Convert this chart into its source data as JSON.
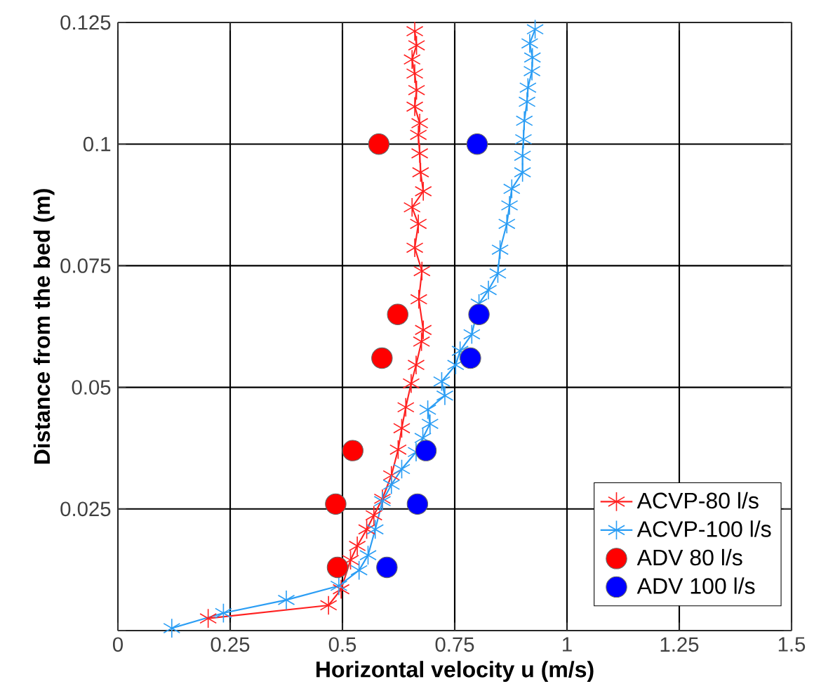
{
  "chart_data": {
    "type": "line",
    "xlabel": "Horizontal velocity u (m/s)",
    "ylabel": "Distance from the bed (m)",
    "xlim": [
      0,
      1.5
    ],
    "ylim": [
      0,
      0.125
    ],
    "xticks": [
      0,
      0.25,
      0.5,
      0.75,
      1,
      1.25,
      1.5
    ],
    "yticks": [
      {
        "value": 0,
        "label": null
      },
      0.025,
      0.05,
      0.075,
      0.1,
      0.125
    ],
    "grid": true,
    "legend": "bottom right",
    "series": [
      {
        "name": "ACVP-80 l/s",
        "marker": "cross",
        "color": "#ff2020",
        "x": [
          0.201,
          0.469,
          0.497,
          0.518,
          0.533,
          0.554,
          0.57,
          0.589,
          0.609,
          0.624,
          0.632,
          0.641,
          0.653,
          0.664,
          0.676,
          0.68,
          0.67,
          0.677,
          0.661,
          0.669,
          0.655,
          0.68,
          0.674,
          0.672,
          0.669,
          0.672,
          0.661,
          0.665,
          0.661,
          0.655,
          0.665,
          0.661
        ],
        "values": [
          0.0025,
          0.0052,
          0.0085,
          0.0145,
          0.0174,
          0.0208,
          0.0237,
          0.0271,
          0.0319,
          0.0372,
          0.0416,
          0.0459,
          0.0508,
          0.0546,
          0.0594,
          0.0618,
          0.0681,
          0.0739,
          0.0787,
          0.0836,
          0.087,
          0.0903,
          0.0942,
          0.0981,
          0.1019,
          0.1043,
          0.1077,
          0.1111,
          0.1145,
          0.1174,
          0.1203,
          0.1232
        ]
      },
      {
        "name": "ACVP-100 l/s",
        "marker": "cross",
        "color": "#2a9df4",
        "x": [
          0.12,
          0.235,
          0.375,
          0.492,
          0.537,
          0.557,
          0.573,
          0.589,
          0.609,
          0.632,
          0.664,
          0.679,
          0.695,
          0.69,
          0.728,
          0.721,
          0.752,
          0.762,
          0.788,
          0.804,
          0.825,
          0.846,
          0.851,
          0.866,
          0.872,
          0.877,
          0.901,
          0.901,
          0.903,
          0.905,
          0.911,
          0.913,
          0.922,
          0.923,
          0.917,
          0.929
        ],
        "values": [
          0.0005,
          0.0036,
          0.0063,
          0.0092,
          0.0124,
          0.0155,
          0.0208,
          0.0266,
          0.03,
          0.0332,
          0.0367,
          0.0396,
          0.0425,
          0.0454,
          0.0483,
          0.0512,
          0.0546,
          0.0575,
          0.0609,
          0.0672,
          0.07,
          0.0734,
          0.0783,
          0.0836,
          0.0874,
          0.0908,
          0.0942,
          0.0976,
          0.101,
          0.1048,
          0.1087,
          0.1116,
          0.115,
          0.1178,
          0.1207,
          0.1236
        ]
      },
      {
        "name": "ADV 80 l/s",
        "type": "scatter",
        "marker": "circle",
        "color": "#ff0000",
        "x": [
          0.581,
          0.623,
          0.588,
          0.523,
          0.485,
          0.489
        ],
        "values": [
          0.1,
          0.065,
          0.056,
          0.037,
          0.026,
          0.013
        ]
      },
      {
        "name": "ADV 100 l/s",
        "type": "scatter",
        "marker": "circle",
        "color": "#0000ff",
        "x": [
          0.8,
          0.804,
          0.785,
          0.686,
          0.667,
          0.599
        ],
        "values": [
          0.1,
          0.065,
          0.056,
          0.037,
          0.026,
          0.013
        ]
      }
    ]
  }
}
